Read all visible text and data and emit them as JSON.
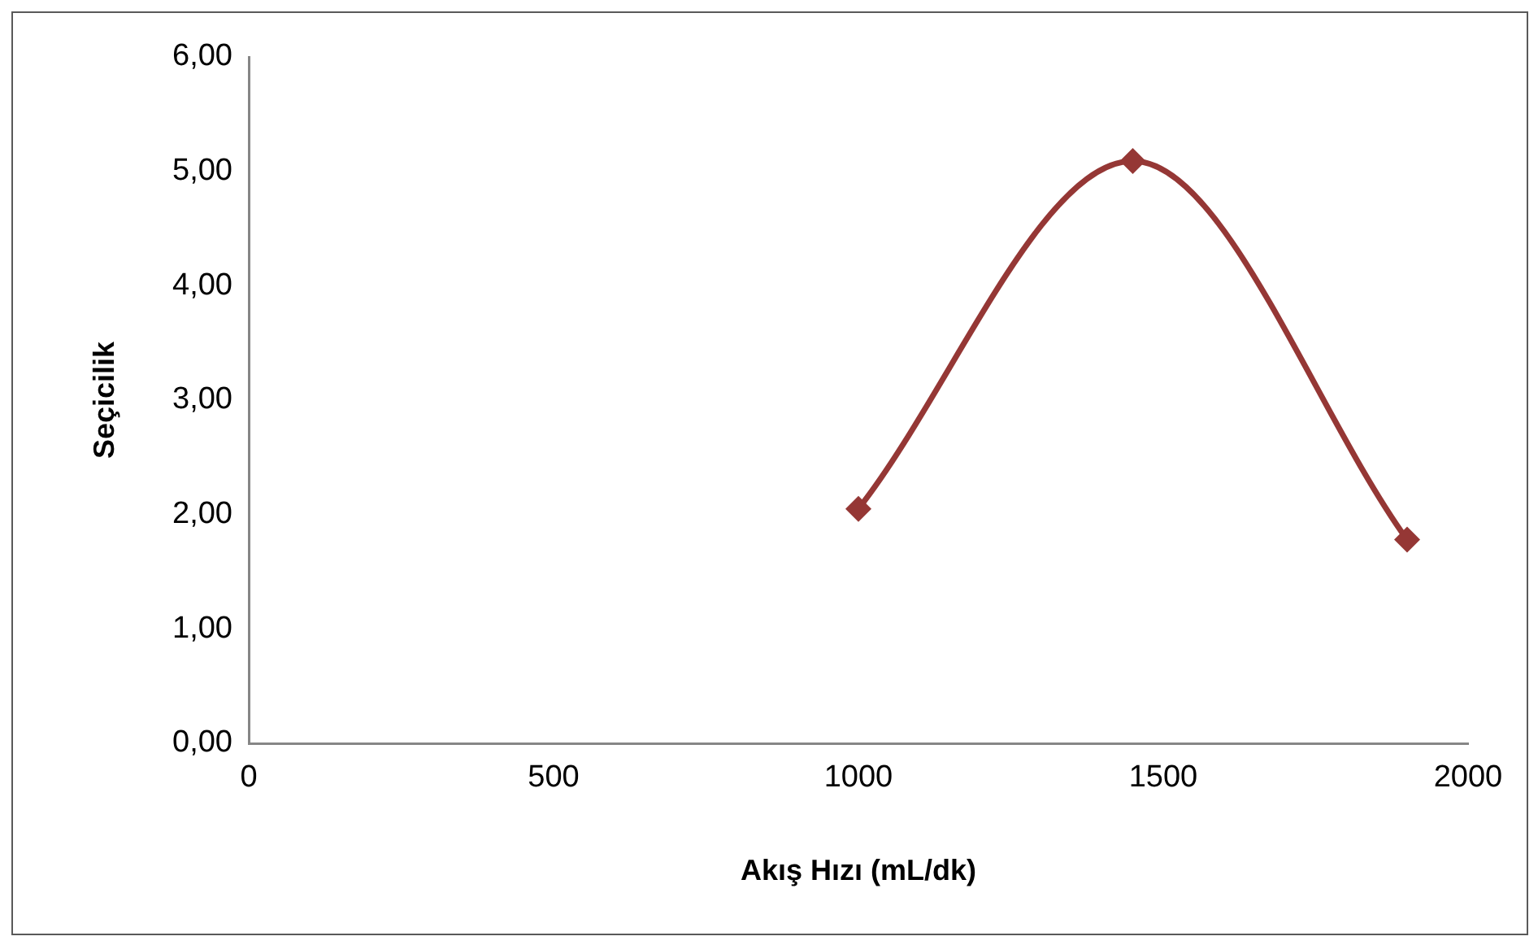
{
  "chart_data": {
    "type": "line",
    "xlabel": "Akış Hızı (mL/dk)",
    "ylabel": "Seçicilik",
    "x": [
      1000,
      1450,
      1900
    ],
    "series": [
      {
        "color": "#953735",
        "values": [
          2.05,
          5.09,
          1.78
        ]
      }
    ],
    "xlim": [
      0,
      2000
    ],
    "xticks": [
      0,
      500,
      1000,
      1500,
      2000
    ],
    "ylim": [
      0,
      6
    ],
    "yticks": [
      {
        "value": 0,
        "label": "0,00"
      },
      {
        "value": 1,
        "label": "1,00"
      },
      {
        "value": 2,
        "label": "2,00"
      },
      {
        "value": 3,
        "label": "3,00"
      },
      {
        "value": 4,
        "label": "4,00"
      },
      {
        "value": 5,
        "label": "5,00"
      },
      {
        "value": 6,
        "label": "6,00"
      }
    ],
    "grid": false,
    "legend": false,
    "marker": "diamond",
    "line_style": "solid"
  }
}
